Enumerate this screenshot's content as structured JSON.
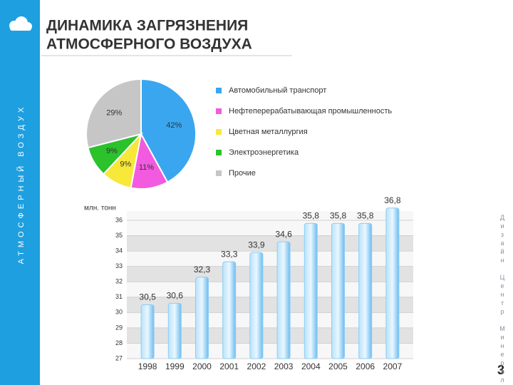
{
  "slide": {
    "title_lines": [
      "ДИНАМИКА ЗАГРЯЗНЕНИЯ",
      "АТМОСФЕРНОГО ВОЗДУХА"
    ],
    "side_label": "АТМОСФЕРНЫЙ ВОЗДУХ",
    "right_label": "Дизайн Центр Минерал",
    "page_number": "3"
  },
  "chart_data": [
    {
      "type": "pie",
      "categories": [
        "Автомобильный транспорт",
        "Нефтеперерабатывающая промышленность",
        "Цветная металлургия",
        "Электроэнергетика",
        "Прочие"
      ],
      "values": [
        42,
        11,
        9,
        9,
        29
      ],
      "value_labels": [
        "42%",
        "11%",
        "9%",
        "9%",
        "29%"
      ],
      "colors": [
        "#3aa6ef",
        "#f25ae0",
        "#f7e83a",
        "#2bc22b",
        "#c6c6c6"
      ]
    },
    {
      "type": "bar",
      "y_label": "млн. тонн",
      "categories": [
        "1998",
        "1999",
        "2000",
        "2001",
        "2002",
        "2003",
        "2004",
        "2005",
        "2006",
        "2007"
      ],
      "values": [
        30.5,
        30.6,
        32.3,
        33.3,
        33.9,
        34.6,
        35.8,
        35.8,
        35.8,
        36.8
      ],
      "value_labels": [
        "30,5",
        "30,6",
        "32,3",
        "33,3",
        "33,9",
        "34,6",
        "35,8",
        "35,8",
        "35,8",
        "36,8"
      ],
      "color": "#8ccdf6",
      "ylim": [
        27,
        36.6
      ],
      "yticks": [
        27,
        28,
        29,
        30,
        31,
        32,
        33,
        34,
        35,
        36
      ],
      "grid": true
    }
  ]
}
